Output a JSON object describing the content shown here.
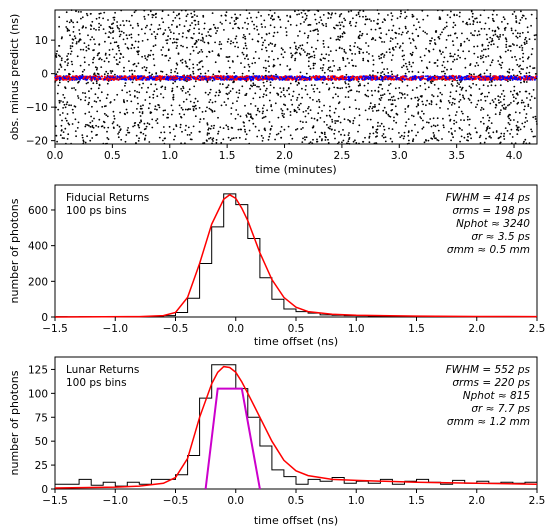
{
  "chart_data": [
    {
      "type": "scatter",
      "xlabel": "time (minutes)",
      "ylabel": "obs. minus predict (ns)",
      "xlim": [
        0.0,
        4.2
      ],
      "ylim": [
        -21,
        19
      ],
      "xticks": [
        0.0,
        0.5,
        1.0,
        1.5,
        2.0,
        2.5,
        3.0,
        3.5,
        4.0
      ],
      "xtick_labels": [
        "0.0",
        "0.5",
        "1.0",
        "1.5",
        "2.0",
        "2.5",
        "3.0",
        "3.5",
        "4.0"
      ],
      "yticks": [
        -20,
        -10,
        0,
        10
      ],
      "ytick_labels": [
        "−20",
        "−10",
        "0",
        "10"
      ],
      "background_points": {
        "color": "#000000",
        "count": 2600,
        "y_range": [
          -21,
          19
        ]
      },
      "signal_band": {
        "center": -1.3,
        "spread": 0.6,
        "colors": [
          "#ff0000",
          "#0000ff"
        ],
        "count": 1800
      },
      "grid": false
    },
    {
      "type": "histogram",
      "annotation": [
        "Fiducial Returns",
        "100 ps bins"
      ],
      "stats": [
        "FWHM = 414 ps",
        "σrms = 198 ps",
        "Nphot ≈ 3240",
        "σr ≈ 3.5 ps",
        "σmm ≈ 0.5 mm"
      ],
      "xlabel": "time offset (ns)",
      "ylabel": "number of photons",
      "xlim": [
        -1.5,
        2.5
      ],
      "ylim": [
        0,
        740
      ],
      "xticks": [
        -1.5,
        -1.0,
        -0.5,
        0.0,
        0.5,
        1.0,
        1.5,
        2.0,
        2.5
      ],
      "xtick_labels": [
        "−1.5",
        "−1.0",
        "−0.5",
        "0.0",
        "0.5",
        "1.0",
        "1.5",
        "2.0",
        "2.5"
      ],
      "yticks": [
        0,
        200,
        400,
        600
      ],
      "ytick_labels": [
        "0",
        "200",
        "400",
        "600"
      ],
      "bin_width": 0.1,
      "bins": [
        {
          "x0": -1.5,
          "count": 2
        },
        {
          "x0": -1.4,
          "count": 1
        },
        {
          "x0": -1.3,
          "count": 2
        },
        {
          "x0": -1.2,
          "count": 1
        },
        {
          "x0": -1.1,
          "count": 2
        },
        {
          "x0": -1.0,
          "count": 3
        },
        {
          "x0": -0.9,
          "count": 2
        },
        {
          "x0": -0.8,
          "count": 3
        },
        {
          "x0": -0.7,
          "count": 5
        },
        {
          "x0": -0.6,
          "count": 8
        },
        {
          "x0": -0.5,
          "count": 25
        },
        {
          "x0": -0.4,
          "count": 105
        },
        {
          "x0": -0.3,
          "count": 300
        },
        {
          "x0": -0.2,
          "count": 505
        },
        {
          "x0": -0.1,
          "count": 690
        },
        {
          "x0": 0.0,
          "count": 630
        },
        {
          "x0": 0.1,
          "count": 440
        },
        {
          "x0": 0.2,
          "count": 220
        },
        {
          "x0": 0.3,
          "count": 100
        },
        {
          "x0": 0.4,
          "count": 45
        },
        {
          "x0": 0.5,
          "count": 30
        },
        {
          "x0": 0.6,
          "count": 22
        },
        {
          "x0": 0.7,
          "count": 12
        },
        {
          "x0": 0.8,
          "count": 10
        },
        {
          "x0": 0.9,
          "count": 8
        },
        {
          "x0": 1.0,
          "count": 7
        },
        {
          "x0": 1.1,
          "count": 5
        },
        {
          "x0": 1.2,
          "count": 4
        },
        {
          "x0": 1.3,
          "count": 4
        },
        {
          "x0": 1.4,
          "count": 3
        },
        {
          "x0": 1.5,
          "count": 3
        },
        {
          "x0": 1.6,
          "count": 3
        },
        {
          "x0": 1.7,
          "count": 2
        },
        {
          "x0": 1.8,
          "count": 2
        },
        {
          "x0": 1.9,
          "count": 2
        },
        {
          "x0": 2.0,
          "count": 2
        },
        {
          "x0": 2.1,
          "count": 2
        },
        {
          "x0": 2.2,
          "count": 1
        },
        {
          "x0": 2.3,
          "count": 1
        },
        {
          "x0": 2.4,
          "count": 1
        }
      ],
      "fit_curve": {
        "color": "#ff0000",
        "x": [
          -1.5,
          -0.8,
          -0.6,
          -0.5,
          -0.4,
          -0.3,
          -0.2,
          -0.1,
          -0.05,
          0.0,
          0.05,
          0.1,
          0.2,
          0.3,
          0.4,
          0.5,
          0.6,
          0.8,
          1.0,
          1.5,
          2.0,
          2.5
        ],
        "y": [
          0,
          2,
          8,
          25,
          110,
          300,
          520,
          660,
          685,
          665,
          610,
          540,
          360,
          210,
          110,
          55,
          30,
          15,
          10,
          5,
          3,
          2
        ]
      }
    },
    {
      "type": "histogram",
      "annotation": [
        "Lunar Returns",
        "100 ps bins"
      ],
      "stats": [
        "FWHM = 552 ps",
        "σrms = 220 ps",
        "Nphot ≈ 815",
        "σr ≈ 7.7 ps",
        "σmm ≈ 1.2 mm"
      ],
      "xlabel": "time offset (ns)",
      "ylabel": "number of photons",
      "xlim": [
        -1.5,
        2.5
      ],
      "ylim": [
        0,
        138
      ],
      "xticks": [
        -1.5,
        -1.0,
        -0.5,
        0.0,
        0.5,
        1.0,
        1.5,
        2.0,
        2.5
      ],
      "xtick_labels": [
        "−1.5",
        "−1.0",
        "−0.5",
        "0.0",
        "0.5",
        "1.0",
        "1.5",
        "2.0",
        "2.5"
      ],
      "yticks": [
        0,
        25,
        50,
        75,
        100,
        125
      ],
      "ytick_labels": [
        "0",
        "25",
        "50",
        "75",
        "100",
        "125"
      ],
      "bin_width": 0.1,
      "bins": [
        {
          "x0": -1.5,
          "count": 5
        },
        {
          "x0": -1.4,
          "count": 5
        },
        {
          "x0": -1.3,
          "count": 10
        },
        {
          "x0": -1.2,
          "count": 4
        },
        {
          "x0": -1.1,
          "count": 7
        },
        {
          "x0": -1.0,
          "count": 3
        },
        {
          "x0": -0.9,
          "count": 7
        },
        {
          "x0": -0.8,
          "count": 5
        },
        {
          "x0": -0.7,
          "count": 10
        },
        {
          "x0": -0.6,
          "count": 10
        },
        {
          "x0": -0.5,
          "count": 15
        },
        {
          "x0": -0.4,
          "count": 35
        },
        {
          "x0": -0.3,
          "count": 95
        },
        {
          "x0": -0.2,
          "count": 130
        },
        {
          "x0": -0.1,
          "count": 130
        },
        {
          "x0": 0.0,
          "count": 105
        },
        {
          "x0": 0.1,
          "count": 75
        },
        {
          "x0": 0.2,
          "count": 45
        },
        {
          "x0": 0.3,
          "count": 20
        },
        {
          "x0": 0.4,
          "count": 13
        },
        {
          "x0": 0.5,
          "count": 5
        },
        {
          "x0": 0.6,
          "count": 10
        },
        {
          "x0": 0.7,
          "count": 8
        },
        {
          "x0": 0.8,
          "count": 12
        },
        {
          "x0": 0.9,
          "count": 6
        },
        {
          "x0": 1.0,
          "count": 8
        },
        {
          "x0": 1.1,
          "count": 6
        },
        {
          "x0": 1.2,
          "count": 10
        },
        {
          "x0": 1.3,
          "count": 5
        },
        {
          "x0": 1.4,
          "count": 8
        },
        {
          "x0": 1.5,
          "count": 10
        },
        {
          "x0": 1.6,
          "count": 7
        },
        {
          "x0": 1.7,
          "count": 5
        },
        {
          "x0": 1.8,
          "count": 9
        },
        {
          "x0": 1.9,
          "count": 6
        },
        {
          "x0": 2.0,
          "count": 8
        },
        {
          "x0": 2.1,
          "count": 6
        },
        {
          "x0": 2.2,
          "count": 7
        },
        {
          "x0": 2.3,
          "count": 6
        },
        {
          "x0": 2.4,
          "count": 7
        }
      ],
      "fit_curve": {
        "color": "#ff0000",
        "x": [
          -1.5,
          -1.0,
          -0.8,
          -0.6,
          -0.5,
          -0.4,
          -0.3,
          -0.2,
          -0.15,
          -0.1,
          -0.05,
          0.0,
          0.05,
          0.1,
          0.2,
          0.3,
          0.4,
          0.5,
          0.6,
          0.8,
          1.0,
          1.5,
          2.0,
          2.5
        ],
        "y": [
          1,
          2,
          3,
          6,
          12,
          32,
          75,
          110,
          122,
          128,
          127,
          122,
          112,
          100,
          75,
          50,
          30,
          19,
          14,
          10,
          9,
          7,
          6,
          5
        ]
      },
      "pulse_shape": {
        "color": "#cc00cc",
        "x": [
          -0.25,
          -0.15,
          0.05,
          0.2
        ],
        "y": [
          0,
          105,
          105,
          0
        ]
      }
    }
  ]
}
